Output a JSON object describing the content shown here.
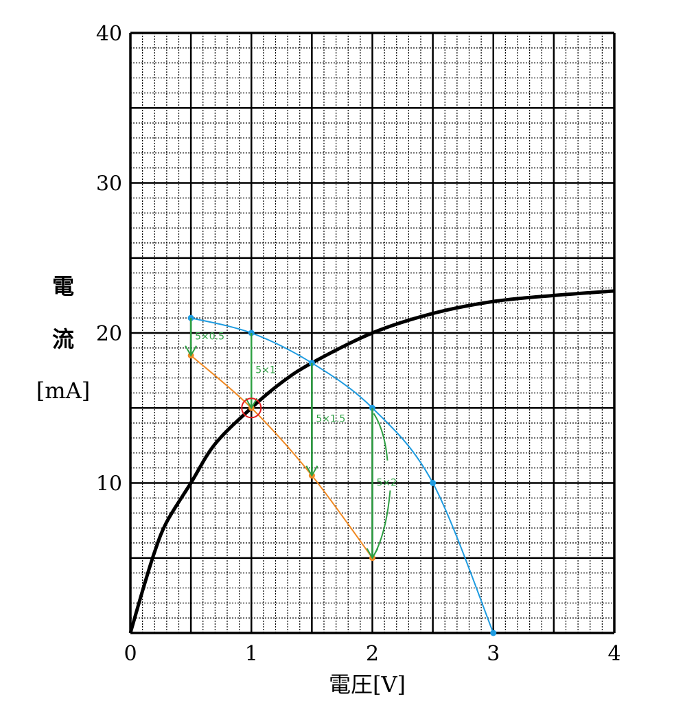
{
  "chart_data": {
    "type": "line",
    "xlabel": "電圧[V]",
    "ylabel_lines": [
      "電",
      "流",
      "[mA]"
    ],
    "xlim": [
      0,
      4
    ],
    "ylim": [
      0,
      40
    ],
    "x_ticks": [
      0,
      1,
      2,
      3,
      4
    ],
    "y_ticks": [
      10,
      20,
      30,
      40
    ],
    "grid": true,
    "series": [
      {
        "color": "#000000",
        "points": [
          [
            0,
            0
          ],
          [
            0.1,
            2.8
          ],
          [
            0.2,
            5.4
          ],
          [
            0.3,
            7.4
          ],
          [
            0.5,
            10
          ],
          [
            0.7,
            12.6
          ],
          [
            1,
            15
          ],
          [
            1.25,
            16.7
          ],
          [
            1.5,
            18
          ],
          [
            2,
            20
          ],
          [
            2.5,
            21.3
          ],
          [
            3,
            22.1
          ],
          [
            3.5,
            22.5
          ],
          [
            4,
            22.8
          ]
        ]
      },
      {
        "color": "#1e9be0",
        "markers": true,
        "points": [
          [
            0.5,
            21
          ],
          [
            1,
            20
          ],
          [
            1.5,
            18
          ],
          [
            2,
            15
          ],
          [
            2.5,
            10
          ],
          [
            3,
            0
          ]
        ]
      },
      {
        "color": "#f08a24",
        "markers": true,
        "points": [
          [
            0.5,
            18.5
          ],
          [
            1,
            15
          ],
          [
            1.5,
            10.5
          ],
          [
            2,
            5
          ]
        ]
      }
    ],
    "annotations": [
      {
        "text": "5×0.5",
        "x": 0.5,
        "from": 21,
        "to": 18.5,
        "color": "#2ea043"
      },
      {
        "text": "5×1",
        "x": 1,
        "from": 20,
        "to": 15,
        "color": "#2ea043"
      },
      {
        "text": "5×1.5",
        "x": 1.5,
        "from": 18,
        "to": 10.5,
        "color": "#2ea043"
      },
      {
        "text": "5×2",
        "x": 2,
        "from": 15,
        "to": 5,
        "color": "#2ea043"
      }
    ],
    "highlight": {
      "x": 1,
      "y": 15,
      "color": "#e02020"
    }
  }
}
